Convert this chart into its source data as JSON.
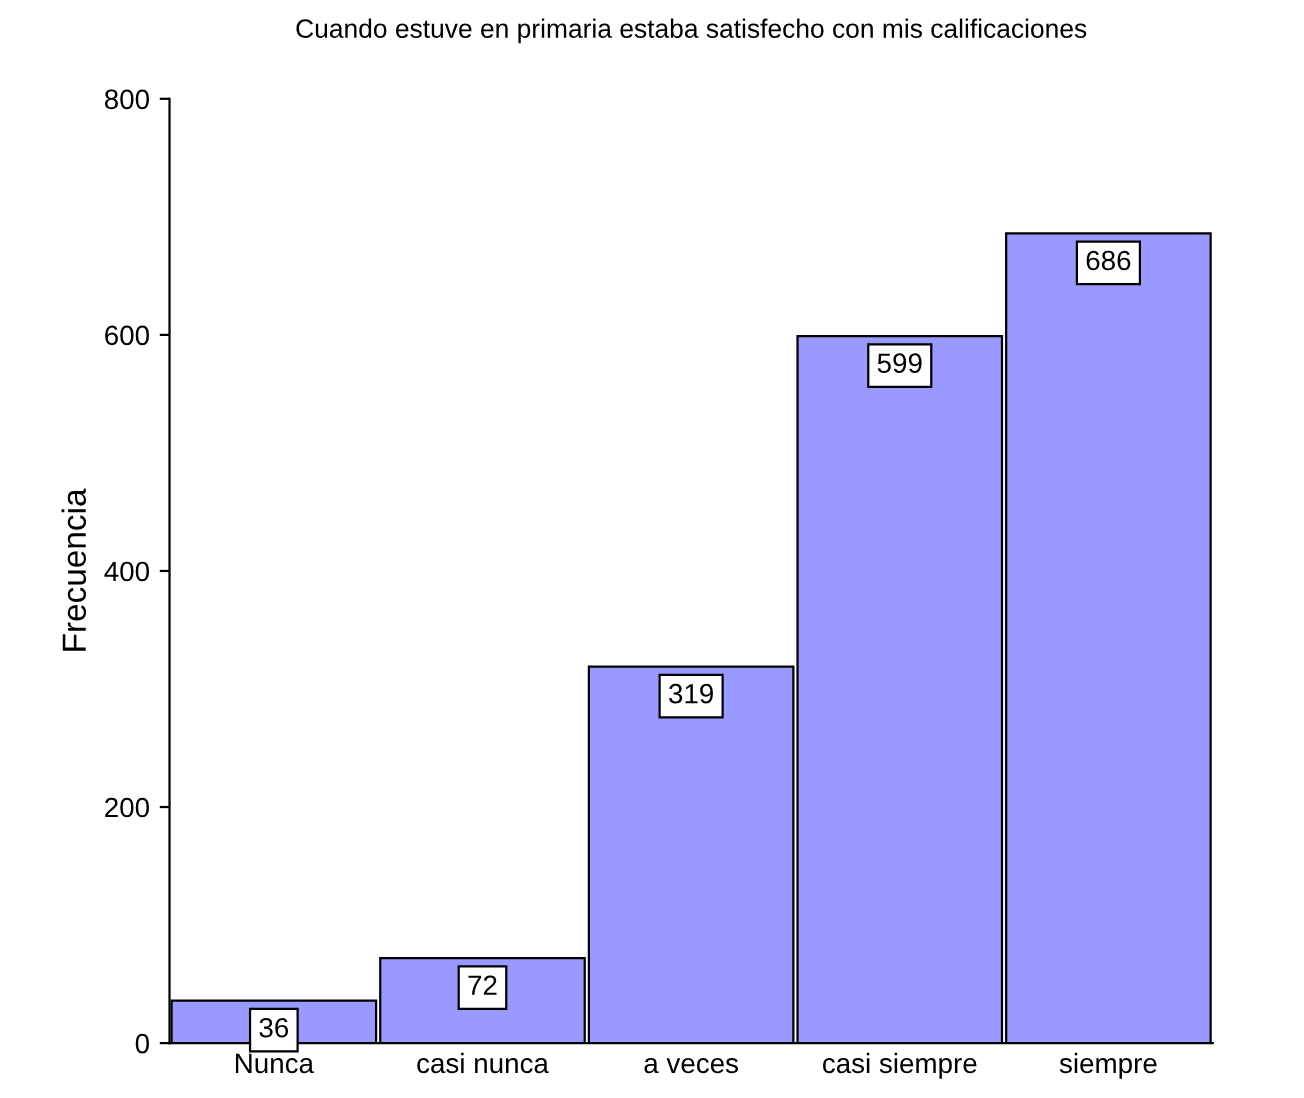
{
  "chart_data": {
    "type": "bar",
    "title": "Cuando estuve en primaria estaba satisfecho con mis calificaciones",
    "ylabel": "Frecuencia",
    "categories": [
      "Nunca",
      "casi nunca",
      "a veces",
      "casi siempre",
      "siempre"
    ],
    "values": [
      36,
      72,
      319,
      599,
      686
    ],
    "color": "#9999ff",
    "ylim": [
      0,
      800
    ],
    "yticks": [
      0,
      200,
      400,
      600,
      800
    ],
    "grid": false,
    "data_labels": true
  }
}
